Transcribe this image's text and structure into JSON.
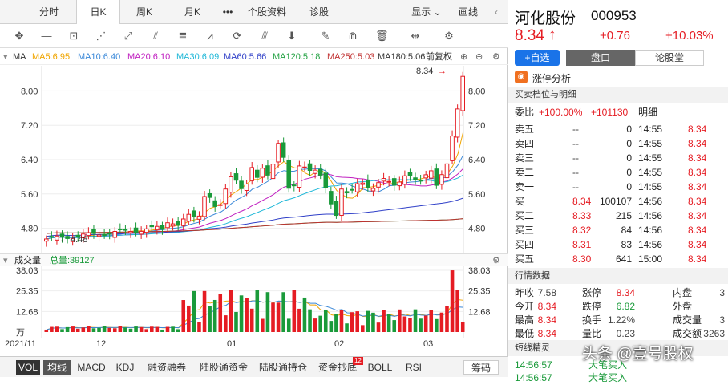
{
  "tabs": [
    "分时",
    "日K",
    "周K",
    "月K",
    "•••",
    "个股资料",
    "诊股",
    "显示",
    "画线"
  ],
  "ma": {
    "label": "MA",
    "ma5": "MA5:6.95",
    "ma10": "MA10:6.40",
    "ma20": "MA20:6.10",
    "ma30": "MA30:6.09",
    "ma60": "MA60:5.66",
    "ma120": "MA120:5.18",
    "ma250": "MA250:5.03",
    "ma180": "MA180:5.06",
    "adj": "前复权"
  },
  "price_axis": [
    "8.00",
    "7.20",
    "6.40",
    "5.60",
    "4.80"
  ],
  "last_price_tag": "8.34",
  "low_marker": "4.48",
  "volume": {
    "label": "成交量",
    "total": "总量:39127",
    "axis": [
      "38.03",
      "25.35",
      "12.68",
      "万"
    ]
  },
  "xaxis": [
    "2021/11",
    "12",
    "01",
    "02",
    "03"
  ],
  "bottom_tabs": [
    "VOL",
    "均线",
    "MACD",
    "KDJ",
    "融资融券",
    "陆股通资金",
    "陆股通持仓",
    "资金抄底",
    "BOLL",
    "RSI",
    "筹码"
  ],
  "badge": "12",
  "stock": {
    "name": "河化股份",
    "code": "000953",
    "price": "8.34",
    "arrow": "↑",
    "change": "+0.76",
    "pct": "+10.03%"
  },
  "buttons": {
    "fav": "+自选",
    "tab1": "盘口",
    "tab2": "论股堂"
  },
  "analysis": "涨停分析",
  "orderbook": {
    "title": "买卖档位与明细",
    "ratio_label": "委比",
    "ratio_value": "+100.00%",
    "ratio_num": "+101130",
    "detail": "明细",
    "sells": [
      {
        "l": "卖五",
        "p": "--",
        "v": "0"
      },
      {
        "l": "卖四",
        "p": "--",
        "v": "0"
      },
      {
        "l": "卖三",
        "p": "--",
        "v": "0"
      },
      {
        "l": "卖二",
        "p": "--",
        "v": "0"
      },
      {
        "l": "卖一",
        "p": "--",
        "v": "0"
      }
    ],
    "buys": [
      {
        "l": "买一",
        "p": "8.34",
        "v": "100107"
      },
      {
        "l": "买二",
        "p": "8.33",
        "v": "215"
      },
      {
        "l": "买三",
        "p": "8.32",
        "v": "84"
      },
      {
        "l": "买四",
        "p": "8.31",
        "v": "83"
      },
      {
        "l": "买五",
        "p": "8.30",
        "v": "641"
      }
    ],
    "ticks": [
      {
        "t": "14:55",
        "p": "8.34"
      },
      {
        "t": "14:55",
        "p": "8.34"
      },
      {
        "t": "14:55",
        "p": "8.34"
      },
      {
        "t": "14:55",
        "p": "8.34"
      },
      {
        "t": "14:55",
        "p": "8.34"
      },
      {
        "t": "14:56",
        "p": "8.34"
      },
      {
        "t": "14:56",
        "p": "8.34"
      },
      {
        "t": "14:56",
        "p": "8.34"
      },
      {
        "t": "14:56",
        "p": "8.34"
      },
      {
        "t": "15:00",
        "p": "8.34"
      }
    ]
  },
  "quote": {
    "title": "行情数据",
    "rows": [
      [
        {
          "k": "昨收",
          "v": "7.58"
        },
        {
          "k": "涨停",
          "v": "8.34"
        },
        {
          "k": "内盘",
          "v": "3"
        }
      ],
      [
        {
          "k": "今开",
          "v": "8.34"
        },
        {
          "k": "跌停",
          "v": "6.82"
        },
        {
          "k": "外盘",
          "v": ""
        }
      ],
      [
        {
          "k": "最高",
          "v": "8.34"
        },
        {
          "k": "换手",
          "v": "1.22%"
        },
        {
          "k": "成交量",
          "v": "3"
        }
      ],
      [
        {
          "k": "最低",
          "v": "8.34"
        },
        {
          "k": "量比",
          "v": "0.23"
        },
        {
          "k": "成交额",
          "v": "3263"
        }
      ]
    ]
  },
  "short": {
    "title": "短线精灵",
    "rows": [
      {
        "t": "14:56:57",
        "s": "大笔买入"
      },
      {
        "t": "14:56:57",
        "s": "大笔买入"
      }
    ]
  },
  "watermark": "头条 @壹号股权",
  "chart_data": {
    "type": "candlestick",
    "ylim": [
      4.4,
      8.4
    ],
    "y_ticks": [
      8.0,
      7.2,
      6.4,
      5.6,
      4.8
    ],
    "x_labels": [
      "2021/11",
      "12",
      "01",
      "02",
      "03"
    ],
    "last_close": 8.34,
    "period_low": 4.48,
    "volume_ylim": [
      0,
      38.03
    ],
    "volume_ticks": [
      38.03,
      25.35,
      12.68
    ]
  }
}
